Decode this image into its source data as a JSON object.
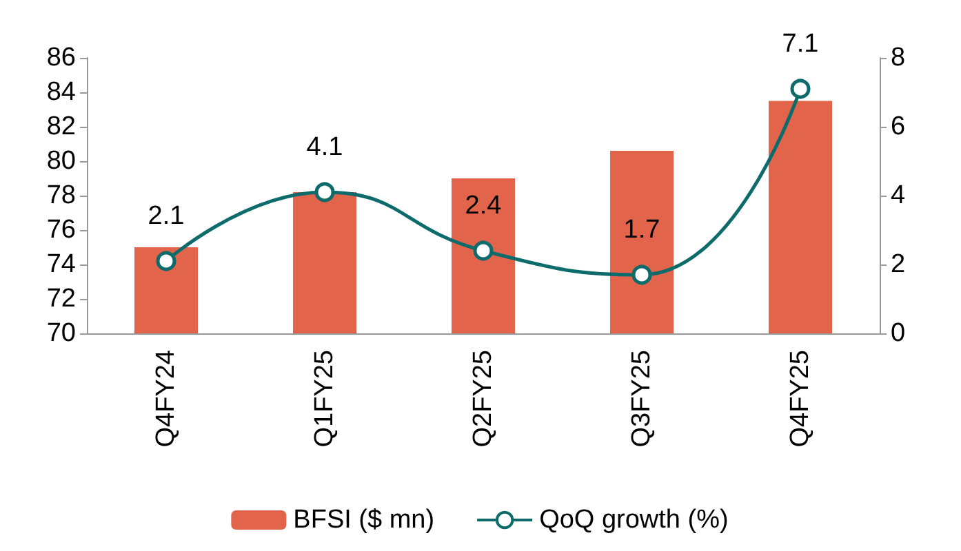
{
  "chart_data": {
    "type": "bar",
    "categories": [
      "Q4FY24",
      "Q1FY25",
      "Q2FY25",
      "Q3FY25",
      "Q4FY25"
    ],
    "series": [
      {
        "name": "BFSI ($ mn)",
        "color": "#e2654b",
        "values": [
          75.0,
          78.2,
          79.0,
          80.6,
          83.5
        ]
      },
      {
        "name": "QoQ growth (%)",
        "type": "line",
        "axis": "y2",
        "color": "#0e6b6b",
        "values": [
          2.1,
          4.1,
          2.4,
          1.7,
          7.1
        ],
        "data_labels": true
      }
    ],
    "ylim": [
      70,
      86
    ],
    "yticks": [
      70,
      72,
      74,
      76,
      78,
      80,
      82,
      84,
      86
    ],
    "y2lim": [
      0,
      8
    ],
    "y2ticks": [
      0,
      2,
      4,
      6,
      8
    ],
    "grid": false,
    "legend": "bottom",
    "marker": "circle"
  }
}
